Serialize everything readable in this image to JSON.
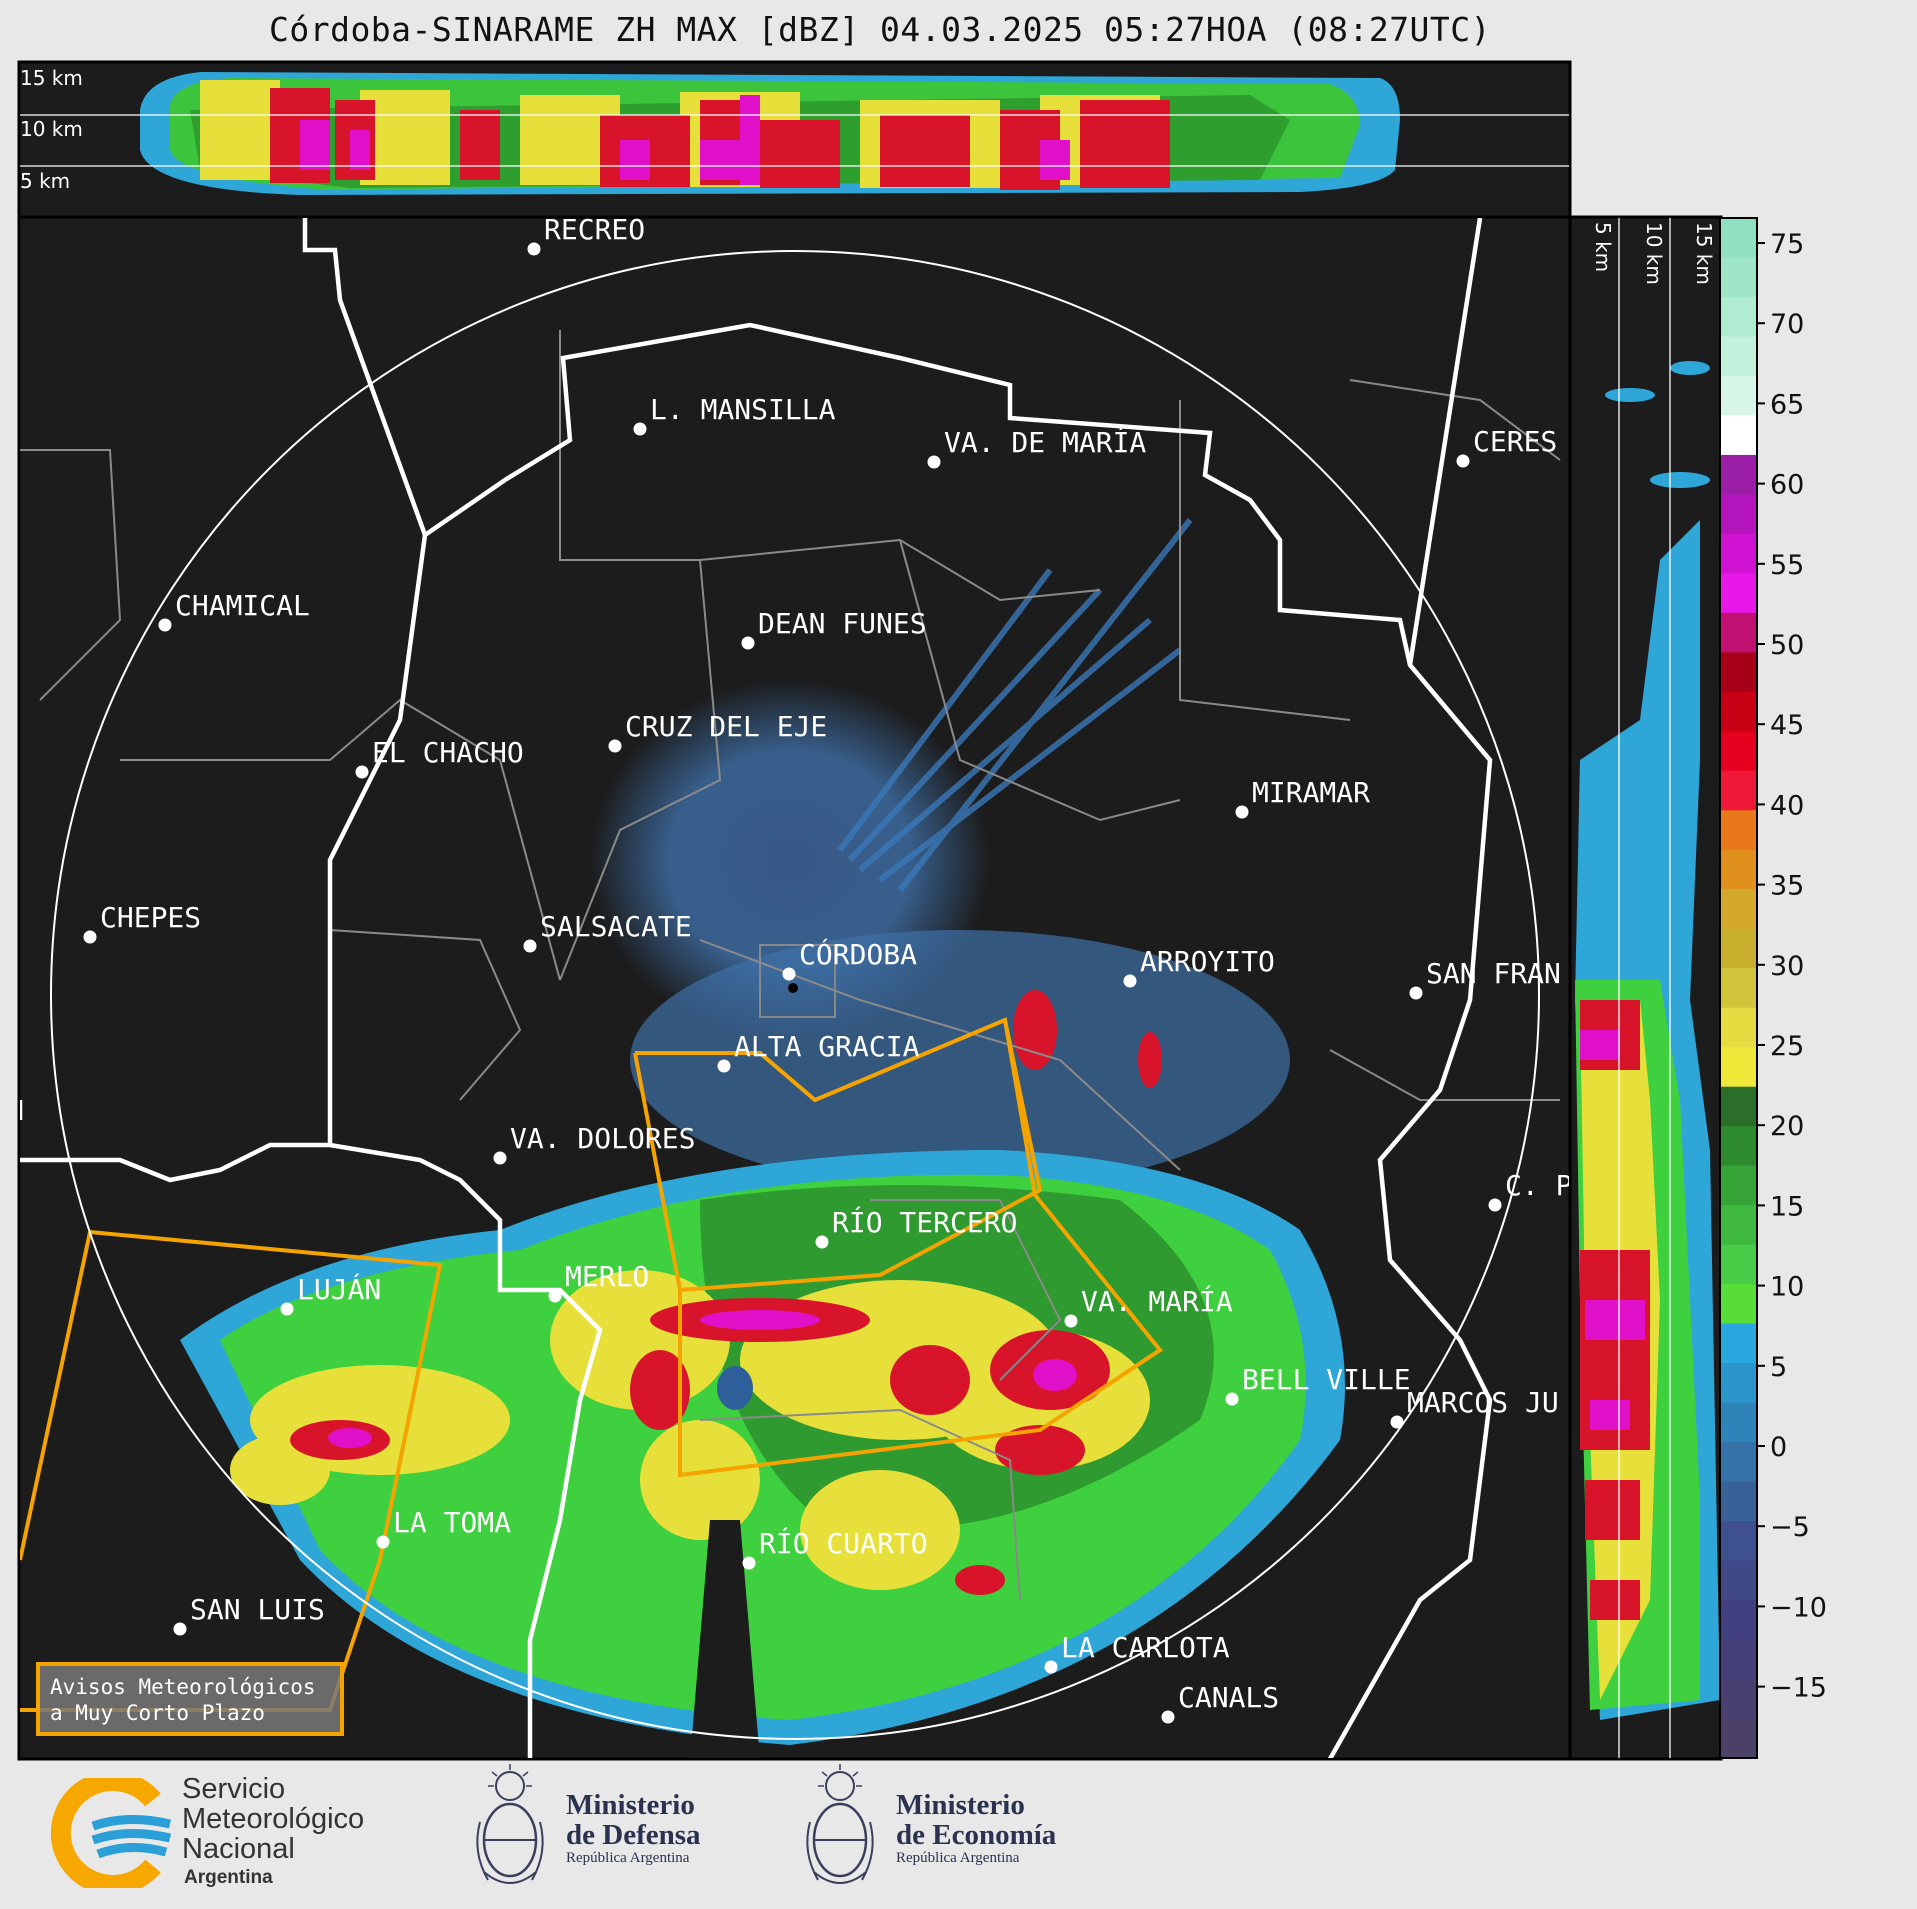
{
  "title": "Córdoba-SINARAME ZH MAX [dBZ] 04.03.2025 05:27HOA (08:27UTC)",
  "top_profile_labels": [
    "15 km",
    "10 km",
    "5 km"
  ],
  "side_profile_labels": [
    "5 km",
    "10 km",
    "15 km"
  ],
  "colorbar": {
    "ticks": [
      "75",
      "70",
      "65",
      "60",
      "55",
      "50",
      "45",
      "40",
      "35",
      "30",
      "25",
      "20",
      "15",
      "10",
      "5",
      "0",
      "−5",
      "−10",
      "−15"
    ]
  },
  "cities": [
    {
      "name": "RECREO"
    },
    {
      "name": "L. MANSILLA"
    },
    {
      "name": "VA. DE MARÍA"
    },
    {
      "name": "CERES"
    },
    {
      "name": "CHAMICAL"
    },
    {
      "name": "DEAN FUNES"
    },
    {
      "name": "CRUZ DEL EJE"
    },
    {
      "name": "EL CHACHO"
    },
    {
      "name": "MIRAMAR"
    },
    {
      "name": "CHEPES"
    },
    {
      "name": "SALSACATE"
    },
    {
      "name": "CÓRDOBA"
    },
    {
      "name": "ARROYITO"
    },
    {
      "name": "SAN FRAN"
    },
    {
      "name": "ALTA GRACIA"
    },
    {
      "name": "VA. DOLORES"
    },
    {
      "name": "C. P"
    },
    {
      "name": "RÍO TERCERO"
    },
    {
      "name": "LUJÁN"
    },
    {
      "name": "MERLO"
    },
    {
      "name": "VA. MARÍA"
    },
    {
      "name": "BELL VILLE"
    },
    {
      "name": "MARCOS JU"
    },
    {
      "name": "LA TOMA"
    },
    {
      "name": "RÍO CUARTO"
    },
    {
      "name": "SAN LUIS"
    },
    {
      "name": "LA CARLOTA"
    },
    {
      "name": "CANALS"
    }
  ],
  "avisos": {
    "line1": "Avisos Meteorológicos",
    "line2": "a Muy Corto Plazo"
  },
  "logos": {
    "smn": {
      "line1": "Servicio",
      "line2": "Meteorológico",
      "line3": "Nacional",
      "country": "Argentina"
    },
    "defensa": {
      "line1": "Ministerio",
      "line2": "de Defensa",
      "sub": "República Argentina"
    },
    "economia": {
      "line1": "Ministerio",
      "line2": "de Economía",
      "sub": "República Argentina"
    }
  }
}
